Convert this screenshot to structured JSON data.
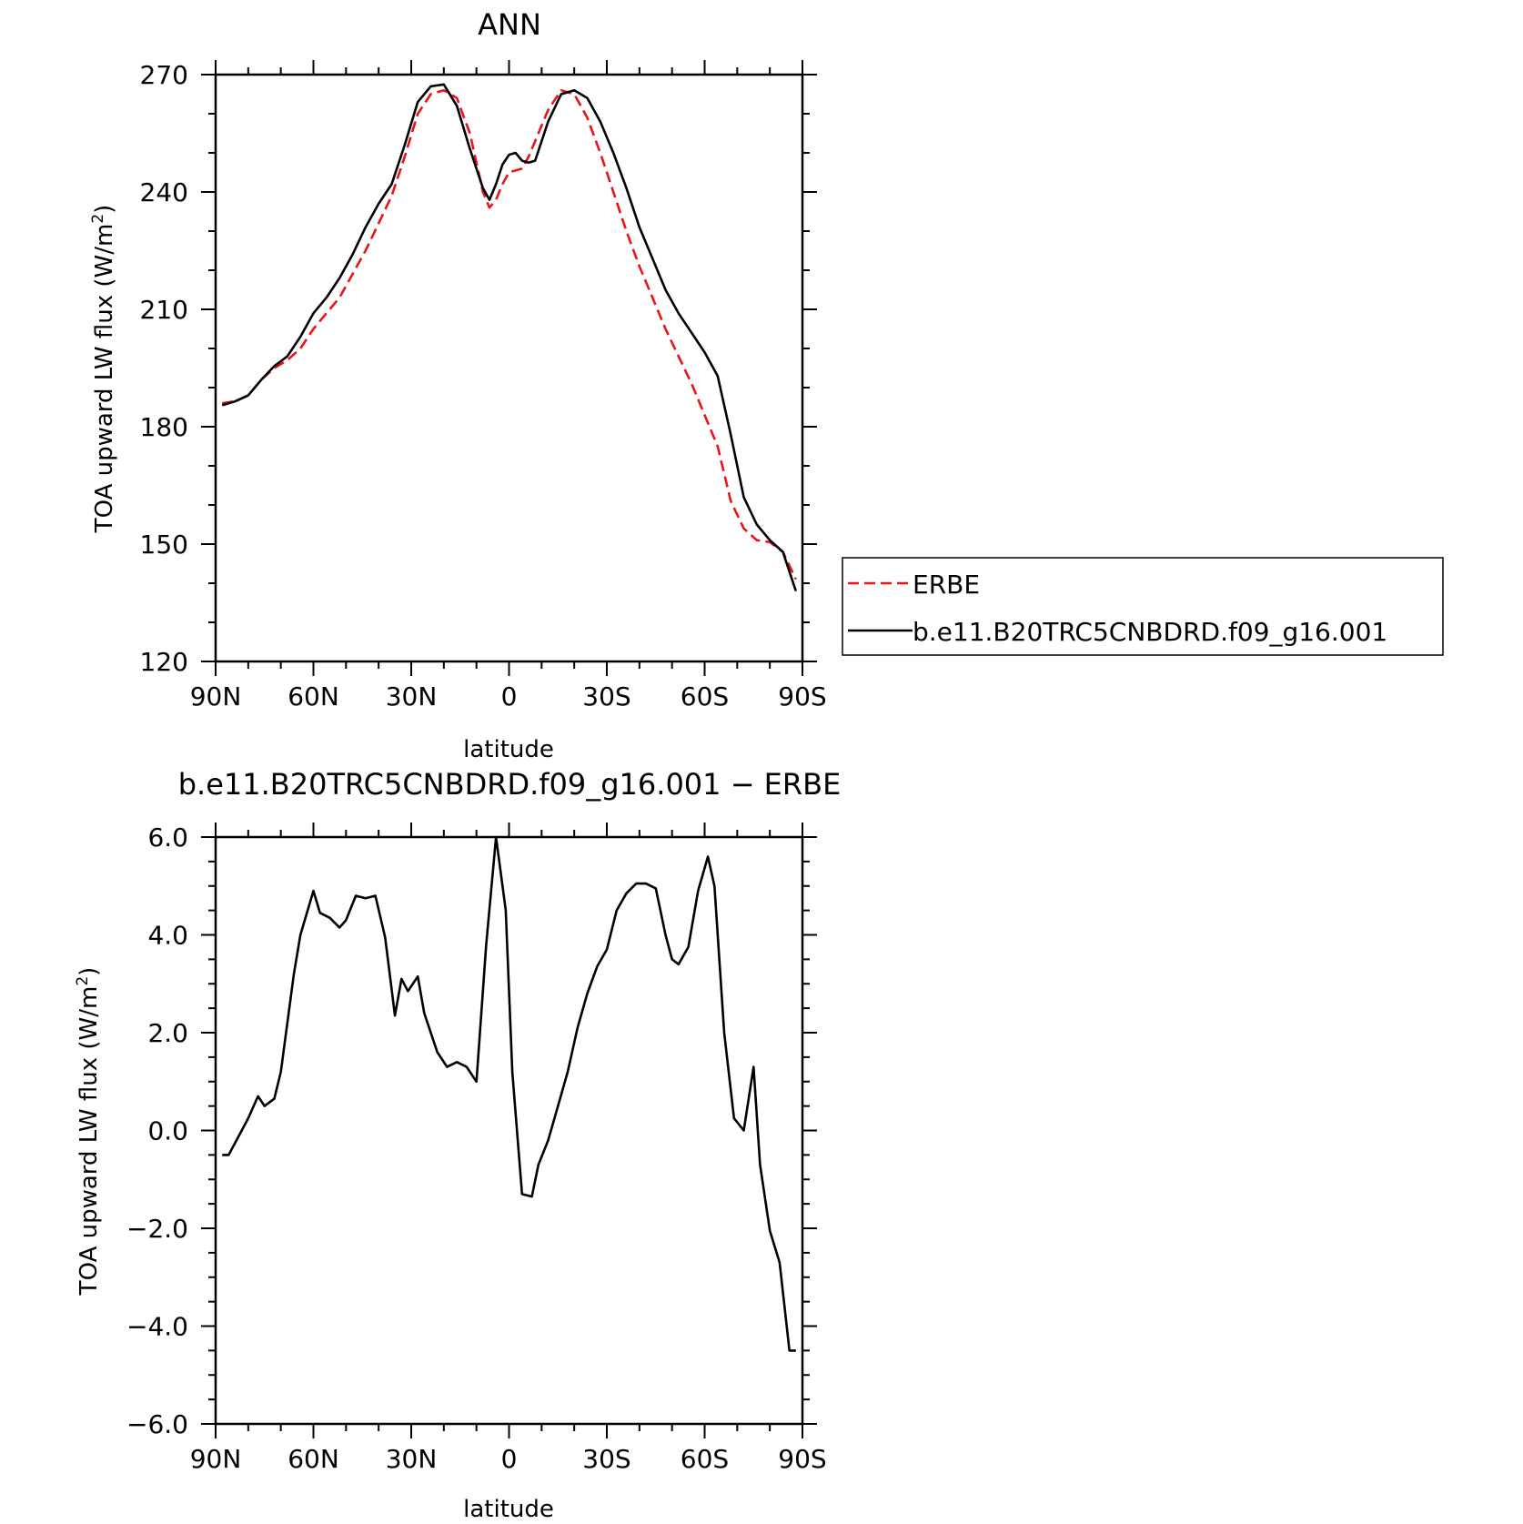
{
  "chart_data": [
    {
      "type": "line",
      "title": "ANN",
      "xlabel": "latitude",
      "ylabel": "TOA upward LW flux (W/m",
      "ylabel_sup": "2",
      "ylabel_tail": ")",
      "xlim": [
        -90,
        90
      ],
      "ylim": [
        120,
        270
      ],
      "x_ticks": [
        -90,
        -60,
        -30,
        0,
        30,
        60,
        90
      ],
      "x_tick_labels": [
        "90N",
        "60N",
        "30N",
        "0",
        "30S",
        "60S",
        "90S"
      ],
      "y_ticks": [
        120,
        150,
        180,
        210,
        240,
        270
      ],
      "y_tick_labels": [
        "120",
        "150",
        "180",
        "210",
        "240",
        "270"
      ],
      "legend": "right",
      "series": [
        {
          "name": "ERBE",
          "color": "#e8141c",
          "dash": "dashed",
          "x": [
            -88,
            -84,
            -80,
            -76,
            -72,
            -68,
            -64,
            -60,
            -56,
            -52,
            -48,
            -44,
            -40,
            -36,
            -32,
            -28,
            -24,
            -20,
            -16,
            -12,
            -8,
            -6,
            -4,
            -2,
            0,
            2,
            4,
            6,
            8,
            12,
            16,
            20,
            24,
            28,
            32,
            36,
            40,
            44,
            48,
            52,
            56,
            60,
            64,
            68,
            72,
            76,
            80,
            84,
            88
          ],
          "y": [
            186,
            186.5,
            188,
            192,
            195,
            197,
            200,
            205,
            209,
            213,
            219,
            225,
            232,
            239,
            249,
            260,
            265,
            266,
            264,
            255,
            240,
            236,
            238,
            242,
            245,
            245.5,
            246,
            249,
            253,
            261,
            266,
            265,
            259,
            250,
            240,
            230,
            221,
            213,
            205,
            198,
            191,
            183,
            175,
            161,
            154,
            151,
            150.5,
            148,
            141
          ]
        },
        {
          "name": "b.e11.B20TRC5CNBDRD.f09_g16.001",
          "color": "#000000",
          "dash": "solid",
          "x": [
            -88,
            -84,
            -80,
            -76,
            -72,
            -68,
            -64,
            -60,
            -56,
            -52,
            -48,
            -44,
            -40,
            -36,
            -32,
            -28,
            -24,
            -20,
            -16,
            -12,
            -8,
            -6,
            -4,
            -2,
            0,
            2,
            4,
            6,
            8,
            12,
            16,
            20,
            24,
            28,
            32,
            36,
            40,
            44,
            48,
            52,
            56,
            60,
            64,
            68,
            72,
            76,
            80,
            84,
            88
          ],
          "y": [
            185.5,
            186.5,
            188,
            192,
            195.5,
            198,
            203,
            209,
            213,
            218,
            224,
            231,
            237,
            242,
            252,
            263,
            267,
            267.5,
            262,
            251,
            241,
            238,
            242,
            247,
            249.5,
            250,
            248,
            247.5,
            248,
            258,
            265,
            266,
            264,
            258,
            250,
            241,
            231,
            223,
            215,
            209,
            204,
            199,
            193,
            178,
            162,
            155,
            151,
            148,
            138
          ]
        }
      ]
    },
    {
      "type": "line",
      "title": "b.e11.B20TRC5CNBDRD.f09_g16.001 − ERBE",
      "xlabel": "latitude",
      "ylabel": "TOA upward LW flux (W/m",
      "ylabel_sup": "2",
      "ylabel_tail": ")",
      "xlim": [
        -90,
        90
      ],
      "ylim": [
        -6,
        6
      ],
      "x_ticks": [
        -90,
        -60,
        -30,
        0,
        30,
        60,
        90
      ],
      "x_tick_labels": [
        "90N",
        "60N",
        "30N",
        "0",
        "30S",
        "60S",
        "90S"
      ],
      "y_ticks": [
        -6,
        -4,
        -2,
        0,
        2,
        4,
        6
      ],
      "y_tick_labels": [
        "−6.0",
        "−4.0",
        "−2.0",
        "0.0",
        "2.0",
        "4.0",
        "6.0"
      ],
      "series": [
        {
          "color": "#000000",
          "dash": "solid",
          "x": [
            -88,
            -86,
            -82,
            -80,
            -77,
            -75,
            -72,
            -70,
            -66,
            -64,
            -60,
            -58,
            -55,
            -52,
            -50,
            -47,
            -44,
            -41,
            -38,
            -35,
            -33,
            -31,
            -28,
            -26,
            -22,
            -19,
            -16,
            -13,
            -10,
            -7,
            -4,
            -1,
            1,
            4,
            7,
            9,
            12,
            15,
            18,
            21,
            24,
            27,
            30,
            33,
            36,
            39,
            42,
            45,
            48,
            50,
            52,
            55,
            58,
            61,
            63,
            66,
            69,
            72,
            75,
            77,
            80,
            83,
            86,
            88
          ],
          "y": [
            -0.5,
            -0.5,
            0.0,
            0.25,
            0.7,
            0.5,
            0.65,
            1.2,
            3.2,
            4.0,
            4.9,
            4.45,
            4.35,
            4.15,
            4.3,
            4.8,
            4.75,
            4.8,
            3.95,
            2.35,
            3.1,
            2.85,
            3.15,
            2.4,
            1.6,
            1.3,
            1.4,
            1.3,
            1.0,
            3.8,
            6.0,
            4.5,
            1.2,
            -1.3,
            -1.35,
            -0.7,
            -0.2,
            0.5,
            1.2,
            2.1,
            2.8,
            3.35,
            3.7,
            4.5,
            4.85,
            5.05,
            5.05,
            4.95,
            4.0,
            3.5,
            3.4,
            3.75,
            4.9,
            5.6,
            5.0,
            2.0,
            0.25,
            0.0,
            1.3,
            -0.7,
            -2.05,
            -2.7,
            -4.5,
            -4.5
          ]
        }
      ]
    }
  ]
}
